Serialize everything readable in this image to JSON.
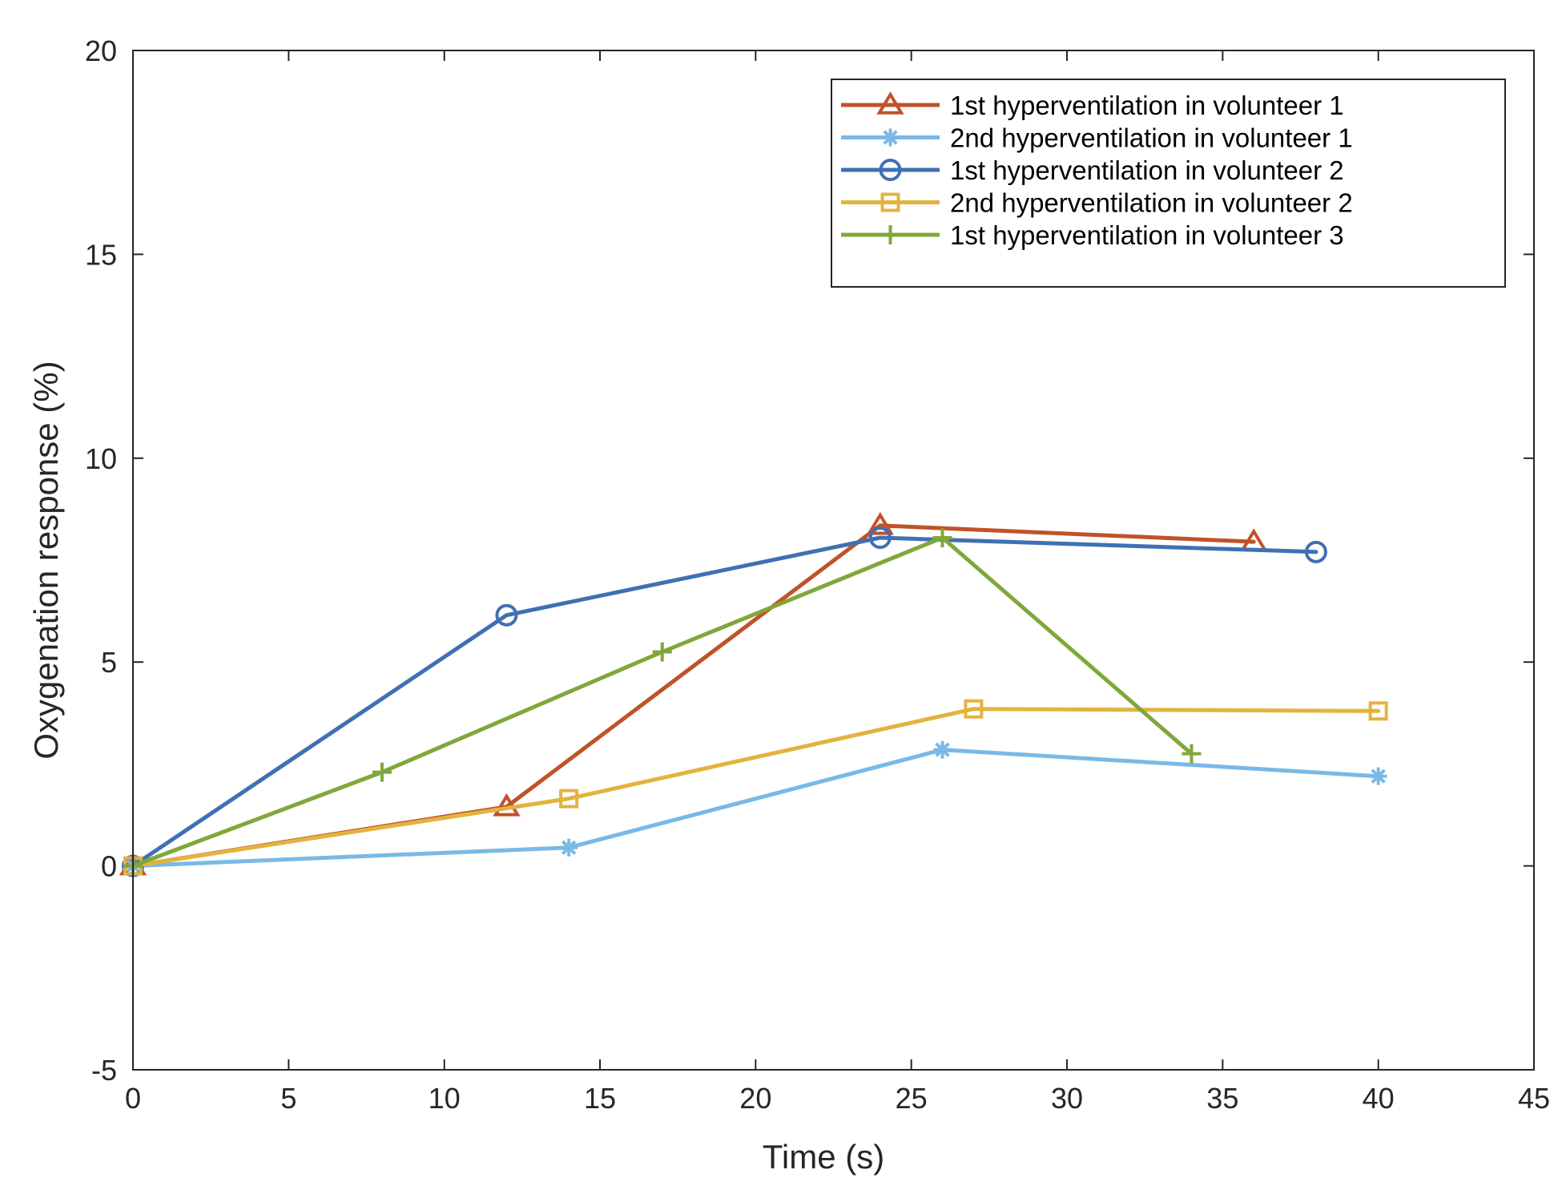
{
  "chart_data": {
    "type": "line",
    "title": "",
    "xlabel": "Time (s)",
    "ylabel": "Oxygenation response (%)",
    "xlim": [
      0,
      45
    ],
    "ylim": [
      -5,
      20
    ],
    "xticks": [
      0,
      5,
      10,
      15,
      20,
      25,
      30,
      35,
      40,
      45
    ],
    "yticks": [
      -5,
      0,
      5,
      10,
      15,
      20
    ],
    "grid": false,
    "legend_position": "top-right",
    "series": [
      {
        "name": "1st hyperventilation in volunteer 1",
        "color": "#c0522a",
        "marker": "triangle",
        "x": [
          0,
          12,
          24,
          36
        ],
        "y": [
          0,
          1.45,
          8.35,
          7.95
        ]
      },
      {
        "name": "2nd hyperventilation in volunteer 1",
        "color": "#7ab8e6",
        "marker": "asterisk",
        "x": [
          0,
          14,
          26,
          40
        ],
        "y": [
          0,
          0.45,
          2.85,
          2.2
        ]
      },
      {
        "name": "1st hyperventilation in volunteer 2",
        "color": "#3f70b4",
        "marker": "circle",
        "x": [
          0,
          12,
          24,
          38
        ],
        "y": [
          0,
          6.15,
          8.05,
          7.7
        ]
      },
      {
        "name": "2nd hyperventilation in volunteer 2",
        "color": "#e3b33e",
        "marker": "square",
        "x": [
          0,
          14,
          27,
          40
        ],
        "y": [
          0,
          1.65,
          3.85,
          3.8
        ]
      },
      {
        "name": "1st hyperventilation in volunteer 3",
        "color": "#7fa83a",
        "marker": "plus",
        "x": [
          0,
          8,
          17,
          26,
          34
        ],
        "y": [
          0,
          2.3,
          5.25,
          8.05,
          2.75
        ]
      }
    ]
  }
}
